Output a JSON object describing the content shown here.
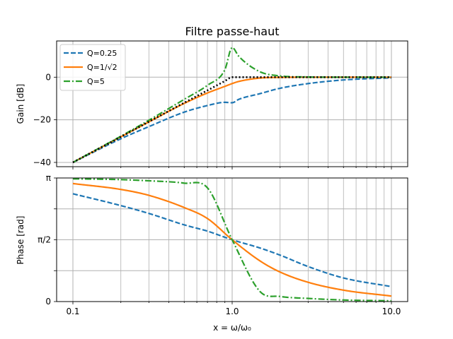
{
  "chart_data": [
    {
      "type": "line",
      "title": "Filtre passe-haut",
      "xlabel": "",
      "ylabel": "Gain [dB]",
      "xscale": "log",
      "xlim": [
        0.1,
        10.0
      ],
      "ylim": [
        -42,
        17
      ],
      "grid": "on (major and minor x)",
      "legend_position": "top-left",
      "x_ticks": [
        0.1,
        1.0,
        10.0
      ],
      "y_ticks": [
        {
          "value": -40,
          "label": "−40"
        },
        {
          "value": -20,
          "label": "−20"
        },
        {
          "value": 0,
          "label": "0"
        }
      ],
      "x": [
        0.1,
        0.2,
        0.3,
        0.5,
        0.7,
        0.9,
        1.0,
        1.1,
        1.5,
        2.0,
        3.0,
        5.0,
        10.0
      ],
      "series": [
        {
          "name": "Q=0.25",
          "style": "dashed",
          "color": "#1f77b4",
          "values": [
            -40.0,
            -28.9,
            -23.2,
            -16.4,
            -13.3,
            -11.8,
            -12.0,
            -10.4,
            -7.7,
            -5.2,
            -3.0,
            -1.3,
            -0.3
          ]
        },
        {
          "name": "Q=1/√2",
          "style": "solid",
          "color": "#ff7f0e",
          "values": [
            -40.0,
            -28.0,
            -21.0,
            -12.3,
            -7.4,
            -4.3,
            -3.0,
            -2.0,
            -0.4,
            -0.1,
            0.0,
            0.0,
            0.0
          ]
        },
        {
          "name": "Q=5",
          "style": "dashdot",
          "color": "#2ca02c",
          "values": [
            -40.0,
            -27.7,
            -20.2,
            -10.4,
            -3.8,
            3.5,
            14.0,
            9.8,
            2.5,
            0.6,
            0.1,
            0.0,
            0.0
          ]
        },
        {
          "name": "",
          "style": "dotted",
          "color": "#000000",
          "values": [
            -40.0,
            -28.0,
            -20.9,
            -12.0,
            -6.2,
            -1.8,
            0.0,
            0.0,
            0.0,
            0.0,
            0.0,
            0.0,
            0.0
          ]
        }
      ]
    },
    {
      "type": "line",
      "title": "",
      "xlabel": "x = ω/ω₀",
      "ylabel": "Phase [rad]",
      "xscale": "log",
      "xlim": [
        0.1,
        10.0
      ],
      "ylim": [
        0,
        3.1416
      ],
      "grid": "on",
      "x_ticks": [
        0.1,
        1.0,
        10.0
      ],
      "y_ticks": [
        {
          "value": 0,
          "label": "0"
        },
        {
          "value": 1.5708,
          "label": "π/2"
        },
        {
          "value": 3.1416,
          "label": "π"
        }
      ],
      "x": [
        0.1,
        0.2,
        0.3,
        0.5,
        0.7,
        1.0,
        1.5,
        2.0,
        3.0,
        5.0,
        10.0
      ],
      "series": [
        {
          "name": "Q=0.25",
          "style": "dashed",
          "color": "#1f77b4",
          "values": [
            2.74,
            2.44,
            2.24,
            1.95,
            1.79,
            1.5708,
            1.36,
            1.18,
            0.89,
            0.6,
            0.38
          ]
        },
        {
          "name": "Q=1/√2",
          "style": "solid",
          "color": "#ff7f0e",
          "values": [
            3.0,
            2.85,
            2.7,
            2.39,
            2.11,
            1.5708,
            1.03,
            0.75,
            0.49,
            0.29,
            0.14
          ]
        },
        {
          "name": "Q=5",
          "style": "dashdot",
          "color": "#2ca02c",
          "values": [
            3.12,
            3.1,
            3.07,
            3.01,
            2.89,
            1.5708,
            0.25,
            0.13,
            0.08,
            0.04,
            0.02
          ]
        }
      ]
    }
  ]
}
